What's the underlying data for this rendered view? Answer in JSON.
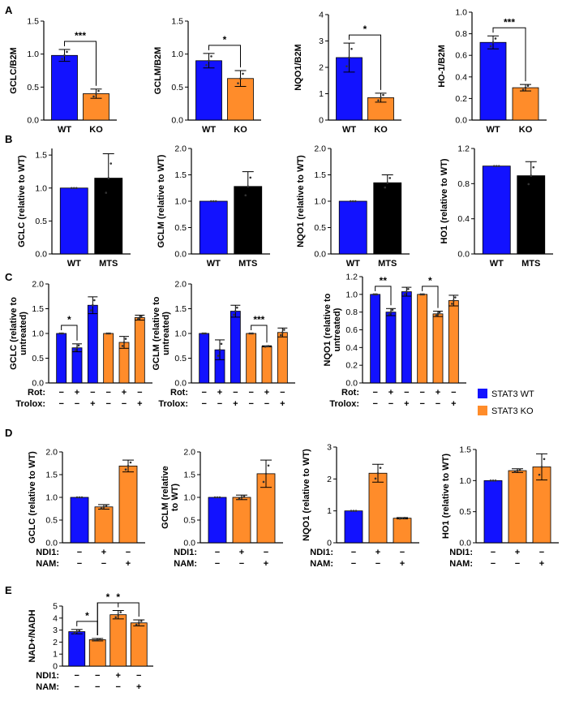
{
  "colors": {
    "wt": "#1212ff",
    "ko": "#ff8c2a",
    "mts": "#000000",
    "axis": "#000000"
  },
  "legend": [
    {
      "label": "STAT3 WT",
      "color": "#1212ff"
    },
    {
      "label": "STAT3 KO",
      "color": "#ff8c2a"
    }
  ],
  "chart_data": [
    {
      "id": "A1",
      "panel": "A",
      "type": "bar",
      "ylabel": "GCLC/B2M",
      "ylim": [
        0,
        1.5
      ],
      "yticks": [
        "0.0",
        "0.5",
        "1.0",
        "1.5"
      ],
      "categories": [
        "WT",
        "KO"
      ],
      "values": [
        0.98,
        0.4
      ],
      "errors": [
        0.09,
        0.07
      ],
      "colors": [
        "#1212ff",
        "#ff8c2a"
      ],
      "sig": [
        {
          "a": 0,
          "b": 1,
          "label": "***"
        }
      ]
    },
    {
      "id": "A2",
      "panel": "A",
      "type": "bar",
      "ylabel": "GCLM/B2M",
      "ylim": [
        0,
        1.5
      ],
      "yticks": [
        "0.0",
        "0.5",
        "1.0",
        "1.5"
      ],
      "categories": [
        "WT",
        "KO"
      ],
      "values": [
        0.9,
        0.63
      ],
      "errors": [
        0.11,
        0.12
      ],
      "colors": [
        "#1212ff",
        "#ff8c2a"
      ],
      "sig": [
        {
          "a": 0,
          "b": 1,
          "label": "*"
        }
      ]
    },
    {
      "id": "A3",
      "panel": "A",
      "type": "bar",
      "ylabel": "NQO1/B2M",
      "ylim": [
        0,
        4
      ],
      "yticks": [
        "0",
        "1",
        "2",
        "3",
        "4"
      ],
      "categories": [
        "WT",
        "KO"
      ],
      "values": [
        2.37,
        0.85
      ],
      "errors": [
        0.55,
        0.17
      ],
      "colors": [
        "#1212ff",
        "#ff8c2a"
      ],
      "sig": [
        {
          "a": 0,
          "b": 1,
          "label": "*"
        }
      ]
    },
    {
      "id": "A4",
      "panel": "A",
      "type": "bar",
      "ylabel": "HO-1/B2M",
      "ylim": [
        0,
        1.0
      ],
      "yticks": [
        "0.0",
        "0.2",
        "0.4",
        "0.6",
        "0.8",
        "1.0"
      ],
      "categories": [
        "WT",
        "KO"
      ],
      "values": [
        0.72,
        0.3
      ],
      "errors": [
        0.06,
        0.03
      ],
      "colors": [
        "#1212ff",
        "#ff8c2a"
      ],
      "sig": [
        {
          "a": 0,
          "b": 1,
          "label": "***"
        }
      ]
    },
    {
      "id": "B1",
      "panel": "B",
      "type": "bar",
      "ylabel": "GCLC (relative to WT)",
      "ylim": [
        0,
        1.6
      ],
      "yticks": [
        "0.0",
        "0.5",
        "1.0",
        "1.5"
      ],
      "tickvals": [
        0,
        0.5,
        1.0,
        1.5
      ],
      "categories": [
        "WT",
        "MTS"
      ],
      "values": [
        1.0,
        1.15
      ],
      "errors": [
        0.0,
        0.37
      ],
      "colors": [
        "#1212ff",
        "#000000"
      ],
      "sig": []
    },
    {
      "id": "B2",
      "panel": "B",
      "type": "bar",
      "ylabel": "GCLM (relative to WT)",
      "ylim": [
        0,
        2.0
      ],
      "yticks": [
        "0.0",
        "0.5",
        "1.0",
        "1.5",
        "2.0"
      ],
      "categories": [
        "WT",
        "MTS"
      ],
      "values": [
        1.0,
        1.28
      ],
      "errors": [
        0.0,
        0.28
      ],
      "colors": [
        "#1212ff",
        "#000000"
      ],
      "sig": []
    },
    {
      "id": "B3",
      "panel": "B",
      "type": "bar",
      "ylabel": "NQO1 (relative to WT)",
      "ylim": [
        0,
        2.0
      ],
      "yticks": [
        "0.0",
        "0.5",
        "1.0",
        "1.5",
        "2.0"
      ],
      "categories": [
        "WT",
        "MTS"
      ],
      "values": [
        1.0,
        1.35
      ],
      "errors": [
        0.0,
        0.15
      ],
      "colors": [
        "#1212ff",
        "#000000"
      ],
      "sig": []
    },
    {
      "id": "B4",
      "panel": "B",
      "type": "bar",
      "ylabel": "HO1 (relative to WT)",
      "ylim": [
        0,
        1.2
      ],
      "yticks": [
        "0.0",
        "0.4",
        "0.8",
        "1.2"
      ],
      "categories": [
        "WT",
        "MTS"
      ],
      "values": [
        1.0,
        0.89
      ],
      "errors": [
        0.0,
        0.16
      ],
      "colors": [
        "#1212ff",
        "#000000"
      ],
      "sig": []
    },
    {
      "id": "C1",
      "panel": "C",
      "type": "bar",
      "ylabel": "GCLC (relative to\nuntreated)",
      "ylim": [
        0,
        2.0
      ],
      "yticks": [
        "0.0",
        "0.5",
        "1.0",
        "1.5",
        "2.0"
      ],
      "values": [
        1.0,
        0.71,
        1.57,
        1.0,
        0.82,
        1.32
      ],
      "errors": [
        0.0,
        0.08,
        0.17,
        0.0,
        0.12,
        0.05
      ],
      "colors": [
        "#1212ff",
        "#1212ff",
        "#1212ff",
        "#ff8c2a",
        "#ff8c2a",
        "#ff8c2a"
      ],
      "conditions": [
        {
          "label": "Rot:",
          "marks": [
            "−",
            "+",
            "−",
            "−",
            "+",
            "−"
          ]
        },
        {
          "label": "Trolox:",
          "marks": [
            "−",
            "−",
            "+",
            "−",
            "−",
            "+"
          ]
        }
      ],
      "sig": [
        {
          "a": 0,
          "b": 1,
          "label": "*"
        }
      ]
    },
    {
      "id": "C2",
      "panel": "C",
      "type": "bar",
      "ylabel": "GCLM (relative to\nuntreated)",
      "ylim": [
        0,
        2.0
      ],
      "yticks": [
        "0.0",
        "0.5",
        "1.0",
        "1.5",
        "2.0"
      ],
      "values": [
        1.0,
        0.67,
        1.45,
        1.0,
        0.74,
        1.02
      ],
      "errors": [
        0.0,
        0.2,
        0.12,
        0.0,
        0.01,
        0.09
      ],
      "colors": [
        "#1212ff",
        "#1212ff",
        "#1212ff",
        "#ff8c2a",
        "#ff8c2a",
        "#ff8c2a"
      ],
      "conditions": [
        {
          "label": "Rot:",
          "marks": [
            "−",
            "+",
            "−",
            "−",
            "+",
            "−"
          ]
        },
        {
          "label": "Trolox:",
          "marks": [
            "−",
            "−",
            "+",
            "−",
            "−",
            "+"
          ]
        }
      ],
      "sig": [
        {
          "a": 3,
          "b": 4,
          "label": "***"
        }
      ]
    },
    {
      "id": "C3",
      "panel": "C",
      "type": "bar",
      "ylabel": "NQO1 (relative to\nuntreated)",
      "ylim": [
        0,
        1.2
      ],
      "yticks": [
        "0.0",
        "0.2",
        "0.4",
        "0.6",
        "0.8",
        "1.0",
        "1.2"
      ],
      "values": [
        1.0,
        0.8,
        1.03,
        1.0,
        0.78,
        0.93
      ],
      "errors": [
        0.0,
        0.04,
        0.05,
        0.0,
        0.03,
        0.06
      ],
      "colors": [
        "#1212ff",
        "#1212ff",
        "#1212ff",
        "#ff8c2a",
        "#ff8c2a",
        "#ff8c2a"
      ],
      "conditions": [
        {
          "label": "Rot:",
          "marks": [
            "−",
            "+",
            "−",
            "−",
            "+",
            "−"
          ]
        },
        {
          "label": "Trolox:",
          "marks": [
            "−",
            "−",
            "+",
            "−",
            "−",
            "+"
          ]
        }
      ],
      "sig": [
        {
          "a": 0,
          "b": 1,
          "label": "**"
        },
        {
          "a": 3,
          "b": 4,
          "label": "*"
        }
      ]
    },
    {
      "id": "D1",
      "panel": "D",
      "type": "bar",
      "ylabel": "GCLC (relative to WT)",
      "ylim": [
        0,
        2.0
      ],
      "yticks": [
        "0.0",
        "0.5",
        "1.0",
        "1.5",
        "2.0"
      ],
      "values": [
        1.0,
        0.79,
        1.69
      ],
      "errors": [
        0.0,
        0.05,
        0.13
      ],
      "colors": [
        "#1212ff",
        "#ff8c2a",
        "#ff8c2a"
      ],
      "conditions": [
        {
          "label": "NDI1:",
          "marks": [
            "−",
            "+",
            "−"
          ]
        },
        {
          "label": "NAM:",
          "marks": [
            "−",
            "−",
            "+"
          ]
        }
      ],
      "sig": []
    },
    {
      "id": "D2",
      "panel": "D",
      "type": "bar",
      "ylabel": "GCLM (relative\nto WT)",
      "ylim": [
        0,
        2.0
      ],
      "yticks": [
        "0.0",
        "0.5",
        "1.0",
        "1.5",
        "2.0"
      ],
      "values": [
        1.0,
        1.0,
        1.52
      ],
      "errors": [
        0.0,
        0.05,
        0.3
      ],
      "colors": [
        "#1212ff",
        "#ff8c2a",
        "#ff8c2a"
      ],
      "conditions": [
        {
          "label": "NDI1:",
          "marks": [
            "−",
            "+",
            "−"
          ]
        },
        {
          "label": "NAM:",
          "marks": [
            "−",
            "−",
            "+"
          ]
        }
      ],
      "sig": []
    },
    {
      "id": "D3",
      "panel": "D",
      "type": "bar",
      "ylabel": "NQO1 (relative to WT)",
      "ylim": [
        0,
        3
      ],
      "yticks": [
        "0",
        "1",
        "2",
        "3"
      ],
      "values": [
        1.0,
        2.18,
        0.77
      ],
      "errors": [
        0.0,
        0.28,
        0.02
      ],
      "colors": [
        "#1212ff",
        "#ff8c2a",
        "#ff8c2a"
      ],
      "conditions": [
        {
          "label": "NDI1:",
          "marks": [
            "−",
            "+",
            "−"
          ]
        },
        {
          "label": "NAM:",
          "marks": [
            "−",
            "−",
            "+"
          ]
        }
      ],
      "sig": []
    },
    {
      "id": "D4",
      "panel": "D",
      "type": "bar",
      "ylabel": "HO1 (relative to WT)",
      "ylim": [
        0,
        1.5
      ],
      "yticks": [
        "0.0",
        "0.5",
        "1.0",
        "1.5"
      ],
      "values": [
        1.0,
        1.16,
        1.22
      ],
      "errors": [
        0.0,
        0.03,
        0.21
      ],
      "colors": [
        "#1212ff",
        "#ff8c2a",
        "#ff8c2a"
      ],
      "conditions": [
        {
          "label": "NDI1:",
          "marks": [
            "−",
            "+",
            "−"
          ]
        },
        {
          "label": "NAM:",
          "marks": [
            "−",
            "−",
            "+"
          ]
        }
      ],
      "sig": []
    },
    {
      "id": "E1",
      "panel": "E",
      "type": "bar",
      "ylabel": "NAD+/NADH",
      "ylim": [
        0,
        5
      ],
      "yticks": [
        "0",
        "1",
        "2",
        "3",
        "4",
        "5"
      ],
      "values": [
        2.87,
        2.2,
        4.28,
        3.6
      ],
      "errors": [
        0.18,
        0.1,
        0.35,
        0.25
      ],
      "colors": [
        "#1212ff",
        "#ff8c2a",
        "#ff8c2a",
        "#ff8c2a"
      ],
      "conditions": [
        {
          "label": "NDI1:",
          "marks": [
            "−",
            "−",
            "+",
            "−"
          ]
        },
        {
          "label": "NAM:",
          "marks": [
            "−",
            "−",
            "−",
            "+"
          ]
        }
      ],
      "sig": [
        {
          "a": 0,
          "b": 1,
          "label": "*",
          "level": 0
        },
        {
          "a": 1,
          "b": 2,
          "label": "*",
          "level": 1
        },
        {
          "a": 1,
          "b": 3,
          "label": "*",
          "level": 2
        }
      ]
    }
  ],
  "panel_labels": [
    "A",
    "B",
    "C",
    "D",
    "E"
  ]
}
